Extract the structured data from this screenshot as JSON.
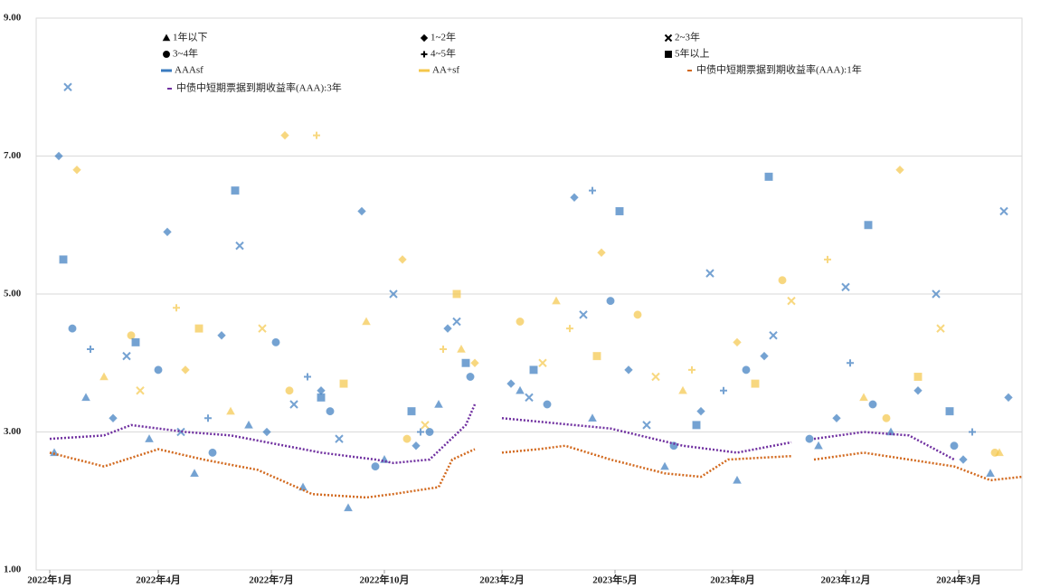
{
  "chart_data": {
    "type": "scatter",
    "xlim": [
      -15,
      1075
    ],
    "xticks": [
      {
        "value": 0,
        "label": "2022年1月"
      },
      {
        "value": 120,
        "label": "2022年4月"
      },
      {
        "value": 245,
        "label": "2022年7月"
      },
      {
        "value": 370,
        "label": "2022年10月"
      },
      {
        "value": 500,
        "label": "2023年2月"
      },
      {
        "value": 625,
        "label": "2023年5月"
      },
      {
        "value": 755,
        "label": "2023年8月"
      },
      {
        "value": 880,
        "label": "2023年12月"
      },
      {
        "value": 1005,
        "label": "2024年3月"
      }
    ],
    "ylim": [
      1,
      9
    ],
    "yticks": [
      {
        "value": 1,
        "label": "1.00"
      },
      {
        "value": 3,
        "label": "3.00"
      },
      {
        "value": 5,
        "label": "5.00"
      },
      {
        "value": 7,
        "label": "7.00"
      },
      {
        "value": 9,
        "label": "9.00"
      }
    ],
    "grid": true,
    "ratings": [
      {
        "name": "AAAsf",
        "color": "#3a7bbf"
      },
      {
        "name": "AA+sf",
        "color": "#f5c74a"
      }
    ],
    "series": [
      {
        "name": "1年以下",
        "marker": "triangle",
        "groups": [
          {
            "x": [
              5,
              40,
              110,
              160,
              220,
              280,
              330,
              370,
              430,
              520,
              600,
              680,
              760,
              850,
              930,
              1040
            ],
            "values": [
              2.7,
              3.5,
              2.9,
              2.4,
              3.1,
              2.2,
              1.9,
              2.6,
              3.4,
              3.6,
              3.2,
              2.5,
              2.3,
              2.8,
              3.0,
              2.4
            ]
          },
          {
            "x": [
              60,
              200,
              350,
              455,
              560,
              700,
              900,
              1050
            ],
            "values": [
              3.8,
              3.3,
              4.6,
              4.2,
              4.9,
              3.6,
              3.5,
              2.7
            ]
          }
        ]
      },
      {
        "name": "1~2年",
        "marker": "diamond",
        "groups": [
          {
            "x": [
              10,
              70,
              130,
              190,
              240,
              300,
              345,
              405,
              440,
              510,
              580,
              640,
              720,
              790,
              870,
              960,
              1010,
              1060
            ],
            "values": [
              7.0,
              3.2,
              5.9,
              4.4,
              3.0,
              3.6,
              6.2,
              2.8,
              4.5,
              3.7,
              6.4,
              3.9,
              3.3,
              4.1,
              3.2,
              3.6,
              2.6,
              3.5
            ]
          },
          {
            "x": [
              30,
              150,
              260,
              390,
              470,
              610,
              760,
              940
            ],
            "values": [
              6.8,
              3.9,
              7.3,
              5.5,
              4.0,
              5.6,
              4.3,
              6.8
            ]
          }
        ]
      },
      {
        "name": "2~3年",
        "marker": "cross",
        "groups": [
          {
            "x": [
              20,
              85,
              145,
              210,
              270,
              320,
              380,
              450,
              530,
              590,
              660,
              730,
              800,
              880,
              980,
              1055
            ],
            "values": [
              8.0,
              4.1,
              3.0,
              5.7,
              3.4,
              2.9,
              5.0,
              4.6,
              3.5,
              4.7,
              3.1,
              5.3,
              4.4,
              5.1,
              5.0,
              6.2
            ]
          },
          {
            "x": [
              100,
              235,
              415,
              545,
              670,
              820,
              985
            ],
            "values": [
              3.6,
              4.5,
              3.1,
              4.0,
              3.8,
              4.9,
              4.5
            ]
          }
        ]
      },
      {
        "name": "3~4年",
        "marker": "circle",
        "groups": [
          {
            "x": [
              25,
              120,
              180,
              250,
              310,
              360,
              420,
              465,
              550,
              620,
              690,
              770,
              840,
              910,
              1000
            ],
            "values": [
              4.5,
              3.9,
              2.7,
              4.3,
              3.3,
              2.5,
              3.0,
              3.8,
              3.4,
              4.9,
              2.8,
              3.9,
              2.9,
              3.4,
              2.8
            ]
          },
          {
            "x": [
              90,
              265,
              395,
              520,
              650,
              810,
              925,
              1045
            ],
            "values": [
              4.4,
              3.6,
              2.9,
              4.6,
              4.7,
              5.2,
              3.2,
              2.7
            ]
          }
        ]
      },
      {
        "name": "4~5年",
        "marker": "plus",
        "groups": [
          {
            "x": [
              45,
              175,
              285,
              410,
              600,
              745,
              885,
              1020
            ],
            "values": [
              4.2,
              3.2,
              3.8,
              3.0,
              6.5,
              3.6,
              4.0,
              3.0
            ]
          },
          {
            "x": [
              140,
              295,
              435,
              575,
              710,
              860
            ],
            "values": [
              4.8,
              7.3,
              4.2,
              4.5,
              3.9,
              5.5
            ]
          }
        ]
      },
      {
        "name": "5年以上",
        "marker": "square",
        "groups": [
          {
            "x": [
              15,
              95,
              205,
              300,
              400,
              460,
              535,
              630,
              715,
              795,
              905,
              995
            ],
            "values": [
              5.5,
              4.3,
              6.5,
              3.5,
              3.3,
              4.0,
              3.9,
              6.2,
              3.1,
              6.7,
              6.0,
              3.3
            ]
          },
          {
            "x": [
              165,
              325,
              450,
              605,
              780,
              960
            ],
            "values": [
              4.5,
              3.7,
              5.0,
              4.1,
              3.7,
              3.8
            ]
          }
        ]
      }
    ],
    "lines": [
      {
        "name": "中债中短期票据到期收益率(AAA):1年",
        "color": "#d2691e",
        "x": [
          0,
          60,
          120,
          170,
          230,
          290,
          350,
          380,
          430,
          445,
          470,
          485,
          500,
          540,
          570,
          620,
          680,
          720,
          750,
          820,
          830,
          845,
          900,
          950,
          1000,
          1040,
          1075
        ],
        "values": [
          2.7,
          2.5,
          2.75,
          2.6,
          2.45,
          2.1,
          2.05,
          2.1,
          2.2,
          2.6,
          2.75,
          null,
          2.7,
          2.75,
          2.8,
          2.6,
          2.4,
          2.35,
          2.6,
          2.65,
          null,
          2.6,
          2.7,
          2.6,
          2.5,
          2.3,
          2.35
        ]
      },
      {
        "name": "中债中短期票据到期收益率(AAA):3年",
        "color": "#7030a0",
        "x": [
          0,
          60,
          90,
          150,
          200,
          300,
          360,
          380,
          420,
          460,
          470,
          485,
          500,
          540,
          620,
          700,
          760,
          820,
          830,
          845,
          900,
          950,
          1000
        ],
        "values": [
          2.9,
          2.95,
          3.1,
          3.0,
          2.95,
          2.7,
          2.6,
          2.55,
          2.6,
          3.1,
          3.4,
          null,
          3.2,
          3.15,
          3.05,
          2.8,
          2.7,
          2.85,
          null,
          2.9,
          3.0,
          2.95,
          2.6
        ]
      }
    ]
  }
}
